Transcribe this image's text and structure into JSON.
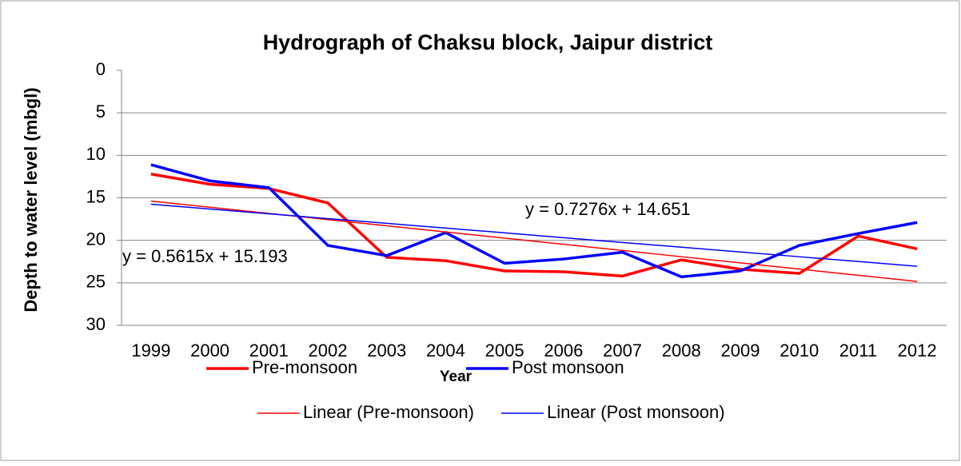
{
  "chart_data": {
    "type": "line",
    "title": "Hydrograph of Chaksu block, Jaipur district",
    "x_label": "Year",
    "y_label": "Depth to water level (mbgl)",
    "categories": [
      "1999",
      "2000",
      "2001",
      "2002",
      "2003",
      "2004",
      "2005",
      "2006",
      "2007",
      "2008",
      "2009",
      "2010",
      "2011",
      "2012"
    ],
    "series": [
      {
        "name": "Pre-monsoon",
        "color": "#ff0000",
        "width": 3.5,
        "values": [
          12.2,
          13.4,
          13.9,
          15.6,
          22.0,
          22.4,
          23.6,
          23.7,
          24.2,
          22.3,
          23.4,
          23.9,
          19.5,
          21.0
        ]
      },
      {
        "name": "Post monsoon",
        "color": "#0000ff",
        "width": 3.5,
        "values": [
          11.1,
          13.0,
          13.8,
          20.6,
          21.8,
          19.1,
          22.7,
          22.2,
          21.4,
          24.3,
          23.6,
          20.6,
          19.2,
          17.9
        ]
      },
      {
        "name": "Linear (Pre-monsoon)",
        "color": "#ff0000",
        "width": 1.5,
        "values": [
          15.38,
          16.11,
          16.83,
          17.56,
          18.29,
          19.02,
          19.74,
          20.47,
          21.2,
          21.93,
          22.65,
          23.38,
          24.11,
          24.84
        ]
      },
      {
        "name": "Linear (Post monsoon)",
        "color": "#0000ff",
        "width": 1.5,
        "values": [
          15.75,
          16.32,
          16.88,
          17.44,
          18.0,
          18.56,
          19.12,
          19.69,
          20.25,
          20.81,
          21.37,
          21.93,
          22.49,
          23.05
        ]
      }
    ],
    "annotations": [
      {
        "text": "y = 0.7276x + 14.651",
        "color": "#ff0000"
      },
      {
        "text": "y = 0.5615x + 15.193",
        "color": "#0000ff"
      }
    ],
    "ylim": [
      0,
      30
    ],
    "yticks": [
      0,
      5,
      10,
      15,
      20,
      25,
      30
    ],
    "y_inverted": true,
    "grid": true
  }
}
